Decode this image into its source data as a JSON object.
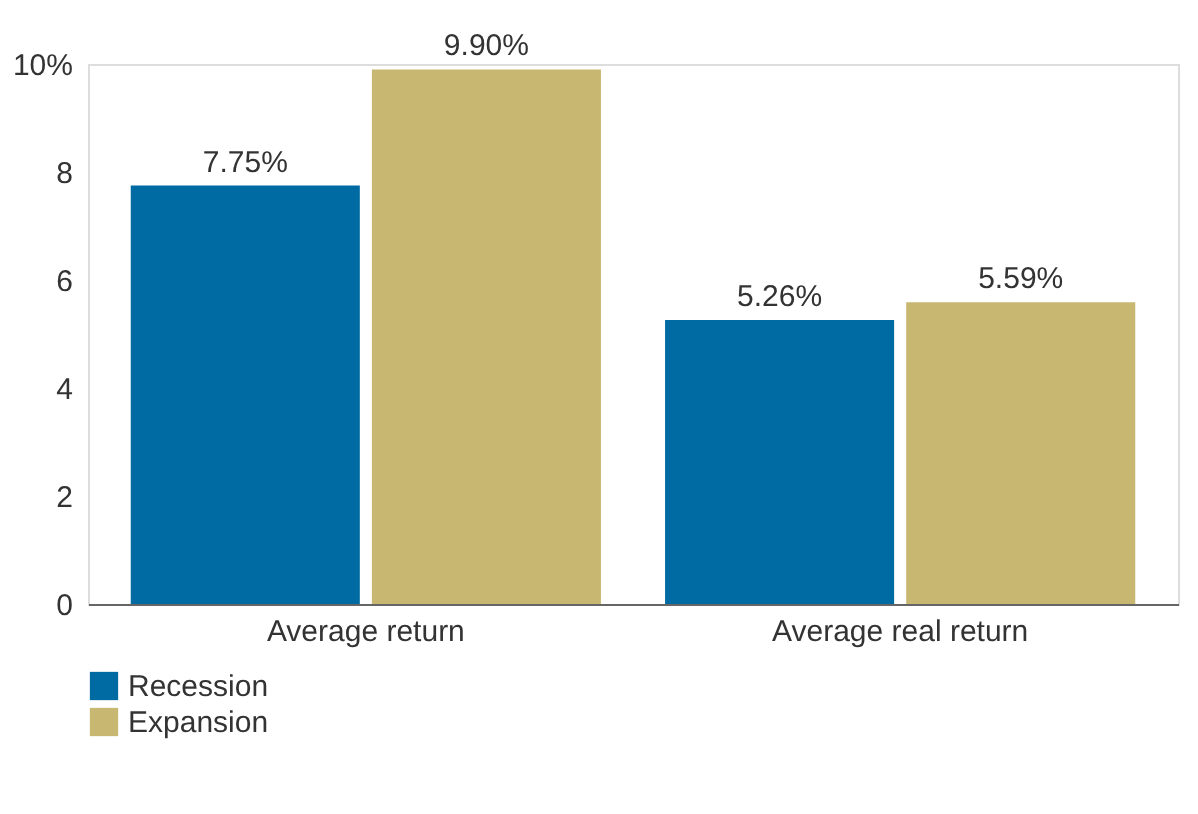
{
  "chart_data": {
    "type": "bar",
    "categories": [
      "Average return",
      "Average real return"
    ],
    "series": [
      {
        "name": "Recession",
        "color": "#006ba2",
        "values": [
          7.75,
          5.26
        ],
        "value_labels": [
          "7.75%",
          "5.26%"
        ]
      },
      {
        "name": "Expansion",
        "color": "#c8b771",
        "values": [
          9.9,
          5.59
        ],
        "value_labels": [
          "9.90%",
          "5.59%"
        ]
      }
    ],
    "ylim": [
      0,
      10
    ],
    "yticks": [
      0,
      2,
      4,
      6,
      8,
      {
        "value": 10,
        "label": "10%"
      }
    ],
    "grid": false,
    "legend": "bottom left"
  }
}
